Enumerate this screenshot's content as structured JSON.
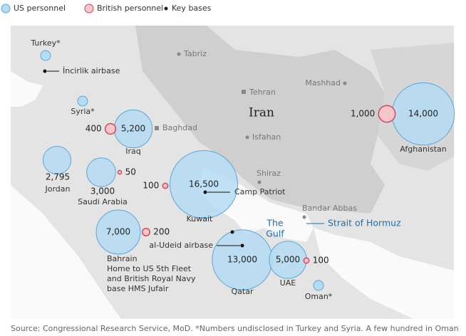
{
  "legend": {
    "us": "US personnel",
    "british": "British personnel",
    "bases": "Key bases"
  },
  "colors": {
    "us": "#b5dcf3",
    "british": "#f6c6ca"
  },
  "countries": [
    {
      "name": "Turkey*"
    },
    {
      "name": "Syria*"
    },
    {
      "name": "Iraq",
      "us": {
        "value": 5200,
        "label": "5,200"
      },
      "british": {
        "value": 400,
        "label": "400"
      }
    },
    {
      "name": "Jordan",
      "us": {
        "value": 2795,
        "label": "2,795"
      }
    },
    {
      "name": "Saudi Arabia",
      "us": {
        "value": 3000,
        "label": "3,000"
      },
      "british": {
        "value": 50,
        "label": "50"
      }
    },
    {
      "name": "Kuwait",
      "us": {
        "value": 16500,
        "label": "16,500"
      },
      "british": {
        "value": 100,
        "label": "100"
      }
    },
    {
      "name": "Bahrain",
      "note": [
        "Home to US 5th Fleet",
        "and British Royal Navy",
        "base HMS Jufair"
      ],
      "us": {
        "value": 7000,
        "label": "7,000"
      },
      "british": {
        "value": 200,
        "label": "200"
      }
    },
    {
      "name": "Qatar",
      "us": {
        "value": 13000,
        "label": "13,000"
      }
    },
    {
      "name": "UAE",
      "us": {
        "value": 5000,
        "label": "5,000"
      },
      "british": {
        "value": 100,
        "label": "100"
      }
    },
    {
      "name": "Oman*"
    },
    {
      "name": "Afghanistan",
      "us": {
        "value": 14000,
        "label": "14,000"
      },
      "british": {
        "value": 1000,
        "label": "1,000"
      }
    }
  ],
  "cities": [
    "Tabriz",
    "Tehran",
    "Isfahan",
    "Shiraz",
    "Mashhad",
    "Baghdad",
    "Bandar Abbas"
  ],
  "bases": [
    "İncirlik airbase",
    "Camp Patriot",
    "al-Udeid airbase"
  ],
  "labels": {
    "country": "Iran",
    "gulf": [
      "The",
      "Gulf"
    ],
    "strait": "Strait of Hormuz"
  },
  "source": "Source: Congressional Research Service, MoD. *Numbers undisclosed in Turkey and Syria. A few hundred in Oman"
}
